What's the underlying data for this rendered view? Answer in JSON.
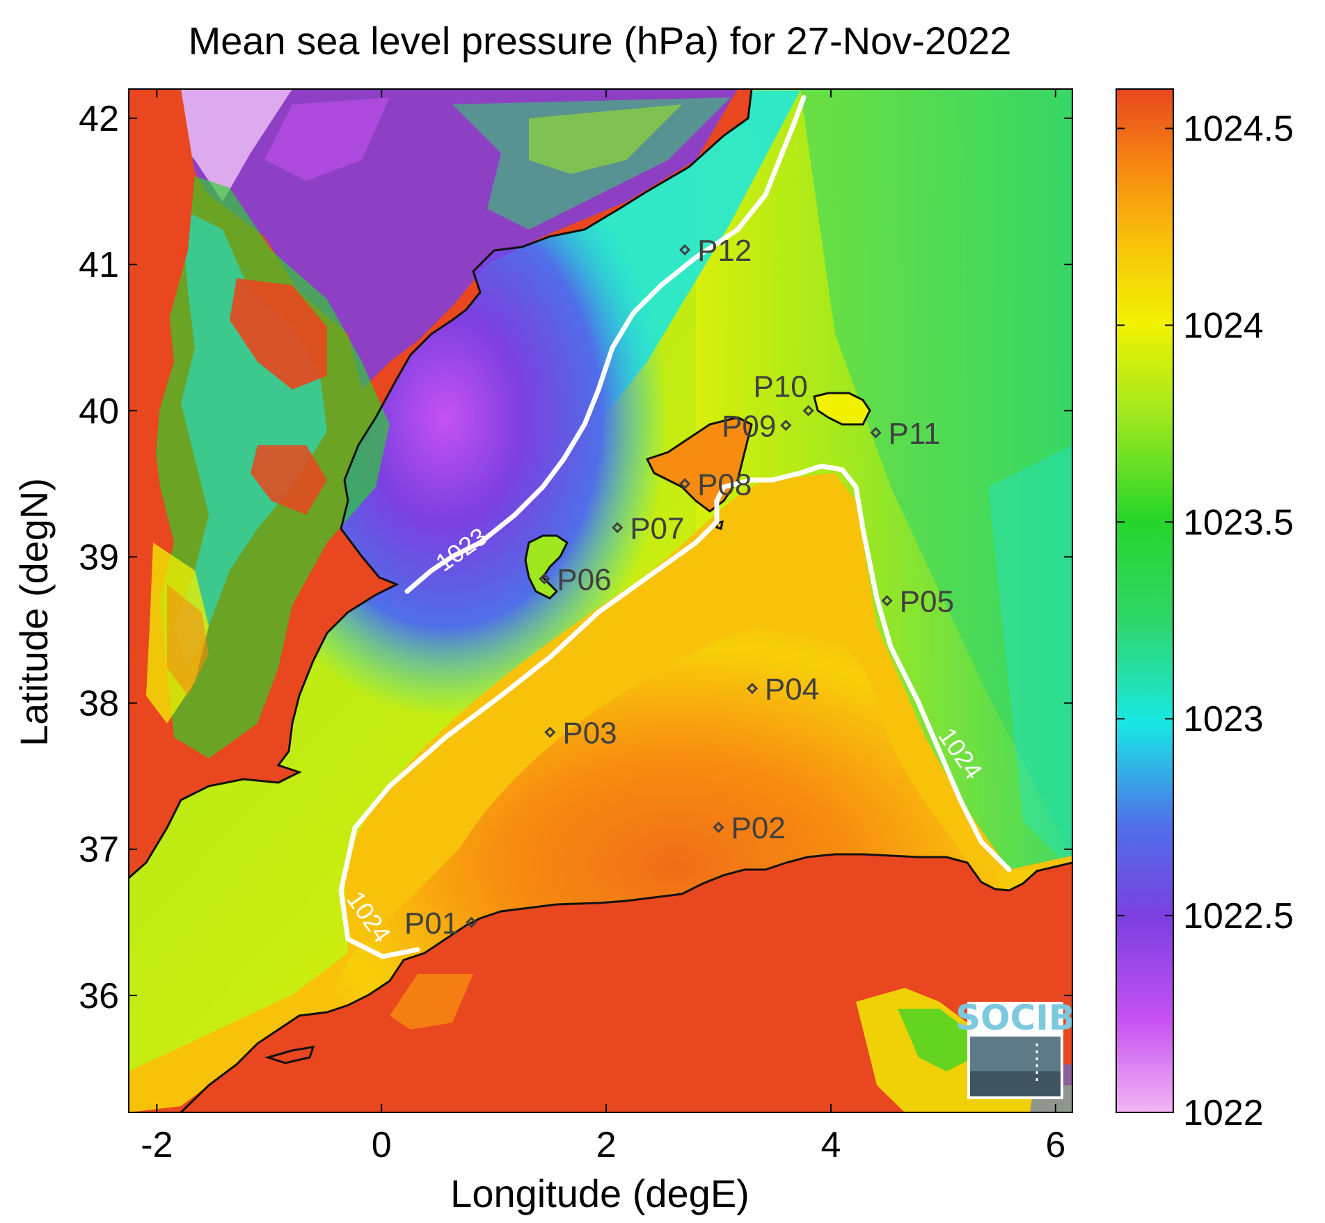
{
  "title": "Mean sea level pressure (hPa) for 27-Nov-2022",
  "xlabel": "Longitude (degE)",
  "ylabel": "Latitude (degN)",
  "x_ticks": [
    "-2",
    "0",
    "2",
    "4",
    "6"
  ],
  "y_ticks": [
    "36",
    "37",
    "38",
    "39",
    "40",
    "41",
    "42"
  ],
  "colorbar": {
    "ticks": [
      "1022",
      "1022.5",
      "1023",
      "1023.5",
      "1024",
      "1024.5"
    ],
    "range": [
      1022,
      1024.6
    ],
    "colors": [
      "#f3b6f5",
      "#c652f2",
      "#7c3fe0",
      "#4f6fe8",
      "#18e7e4",
      "#2fd66a",
      "#28d52a",
      "#9fe81f",
      "#f1f201",
      "#f8c20b",
      "#f78c10",
      "#e8471f"
    ]
  },
  "contour_labels": [
    "1023",
    "1024",
    "1024"
  ],
  "stations": [
    {
      "id": "P01",
      "lon": 0.8,
      "lat": 36.5
    },
    {
      "id": "P02",
      "lon": 3.0,
      "lat": 37.15
    },
    {
      "id": "P03",
      "lon": 1.5,
      "lat": 37.8
    },
    {
      "id": "P04",
      "lon": 3.3,
      "lat": 38.1
    },
    {
      "id": "P05",
      "lon": 4.5,
      "lat": 38.7
    },
    {
      "id": "P06",
      "lon": 1.45,
      "lat": 38.85
    },
    {
      "id": "P07",
      "lon": 2.1,
      "lat": 39.2
    },
    {
      "id": "P08",
      "lon": 2.7,
      "lat": 39.5
    },
    {
      "id": "P09",
      "lon": 3.6,
      "lat": 39.9
    },
    {
      "id": "P10",
      "lon": 3.8,
      "lat": 40.0
    },
    {
      "id": "P11",
      "lon": 4.4,
      "lat": 39.85
    },
    {
      "id": "P12",
      "lon": 2.7,
      "lat": 41.1
    }
  ],
  "logo": "SOCIB"
}
